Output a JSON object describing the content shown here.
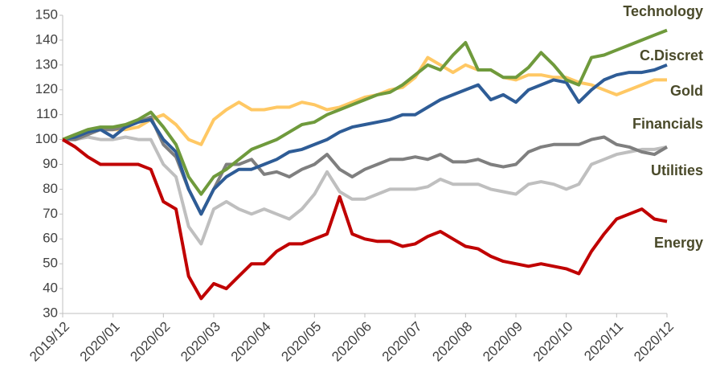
{
  "chart_data": {
    "type": "line",
    "categories": [
      "2019/12",
      null,
      null,
      null,
      "2020/01",
      null,
      null,
      null,
      "2020/02",
      null,
      null,
      null,
      "2020/03",
      null,
      null,
      null,
      "2020/04",
      null,
      null,
      null,
      "2020/05",
      null,
      null,
      null,
      "2020/06",
      null,
      null,
      null,
      "2020/07",
      null,
      null,
      null,
      "2020/08",
      null,
      null,
      null,
      "2020/09",
      null,
      null,
      null,
      "2020/10",
      null,
      null,
      null,
      "2020/11",
      null,
      null,
      null,
      "2020/12"
    ],
    "ylim": [
      30,
      150
    ],
    "yticks": [
      30,
      40,
      50,
      60,
      70,
      80,
      90,
      100,
      110,
      120,
      130,
      140,
      150
    ],
    "grid": false,
    "series": [
      {
        "name": "Gold",
        "color": "#ffc864",
        "values": [
          100,
          102,
          103,
          104,
          104,
          104,
          105,
          108,
          110,
          106,
          100,
          98,
          108,
          112,
          115,
          112,
          112,
          113,
          113,
          115,
          114,
          112,
          113,
          115,
          117,
          118,
          120,
          121,
          125,
          133,
          130,
          127,
          130,
          128,
          128,
          125,
          124,
          126,
          126,
          125,
          125,
          123,
          122,
          120,
          118,
          120,
          122,
          124,
          124
        ]
      },
      {
        "name": "Utilities",
        "color": "#bfbfbf",
        "values": [
          100,
          100,
          101,
          100,
          100,
          101,
          100,
          100,
          90,
          85,
          65,
          58,
          72,
          75,
          72,
          70,
          72,
          70,
          68,
          72,
          78,
          87,
          79,
          76,
          76,
          78,
          80,
          80,
          80,
          81,
          84,
          82,
          82,
          82,
          80,
          79,
          78,
          82,
          83,
          82,
          80,
          82,
          90,
          92,
          94,
          95,
          96,
          96,
          97
        ]
      },
      {
        "name": "Financials",
        "color": "#7f7f7f",
        "values": [
          100,
          100,
          102,
          104,
          104,
          105,
          107,
          109,
          98,
          93,
          80,
          70,
          80,
          90,
          90,
          92,
          86,
          87,
          85,
          88,
          90,
          94,
          88,
          85,
          88,
          90,
          92,
          92,
          93,
          92,
          94,
          91,
          91,
          92,
          90,
          89,
          90,
          95,
          97,
          98,
          98,
          98,
          100,
          101,
          98,
          97,
          95,
          94,
          97
        ]
      },
      {
        "name": "C.Discret",
        "color": "#2e5c96",
        "values": [
          100,
          101,
          103,
          104,
          101,
          105,
          107,
          108,
          100,
          95,
          80,
          70,
          80,
          85,
          88,
          88,
          90,
          92,
          95,
          96,
          98,
          100,
          103,
          105,
          106,
          107,
          108,
          110,
          110,
          113,
          116,
          118,
          120,
          122,
          116,
          118,
          115,
          120,
          122,
          124,
          123,
          115,
          120,
          124,
          126,
          127,
          127,
          128,
          130
        ]
      },
      {
        "name": "Technology",
        "color": "#6f9a3c",
        "values": [
          100,
          102,
          104,
          105,
          105,
          106,
          108,
          111,
          105,
          98,
          85,
          78,
          85,
          88,
          92,
          96,
          98,
          100,
          103,
          106,
          107,
          110,
          112,
          114,
          116,
          118,
          119,
          122,
          126,
          130,
          128,
          134,
          139,
          128,
          128,
          125,
          125,
          129,
          135,
          130,
          124,
          122,
          133,
          134,
          136,
          138,
          140,
          142,
          144
        ]
      },
      {
        "name": "Energy",
        "color": "#c00000",
        "values": [
          100,
          97,
          93,
          90,
          90,
          90,
          90,
          88,
          75,
          72,
          45,
          36,
          42,
          40,
          45,
          50,
          50,
          55,
          58,
          58,
          60,
          62,
          77,
          62,
          60,
          59,
          59,
          57,
          58,
          61,
          63,
          60,
          57,
          56,
          53,
          51,
          50,
          49,
          50,
          49,
          48,
          46,
          55,
          62,
          68,
          70,
          72,
          68,
          67
        ]
      }
    ]
  }
}
